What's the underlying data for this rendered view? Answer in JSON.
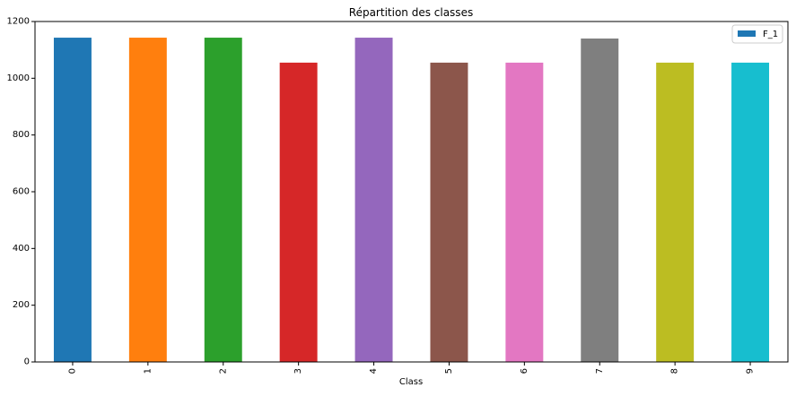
{
  "chart_data": {
    "type": "bar",
    "title": "Répartition des classes",
    "xlabel": "Class",
    "ylabel": "",
    "categories": [
      "0",
      "1",
      "2",
      "3",
      "4",
      "5",
      "6",
      "7",
      "8",
      "9"
    ],
    "series": [
      {
        "name": "F_1",
        "values": [
          1143,
          1143,
          1143,
          1055,
          1143,
          1055,
          1055,
          1140,
          1055,
          1055
        ]
      }
    ],
    "bar_colors": [
      "#1f77b4",
      "#ff7f0e",
      "#2ca02c",
      "#d62728",
      "#9467bd",
      "#8c564b",
      "#e377c2",
      "#7f7f7f",
      "#bcbd22",
      "#17becf"
    ],
    "legend_color": "#1f77b4",
    "ylim": [
      0,
      1200
    ],
    "yticks": [
      "0",
      "200",
      "400",
      "600",
      "800",
      "1000",
      "1200"
    ],
    "grid": false,
    "legend_position": "top-right"
  }
}
